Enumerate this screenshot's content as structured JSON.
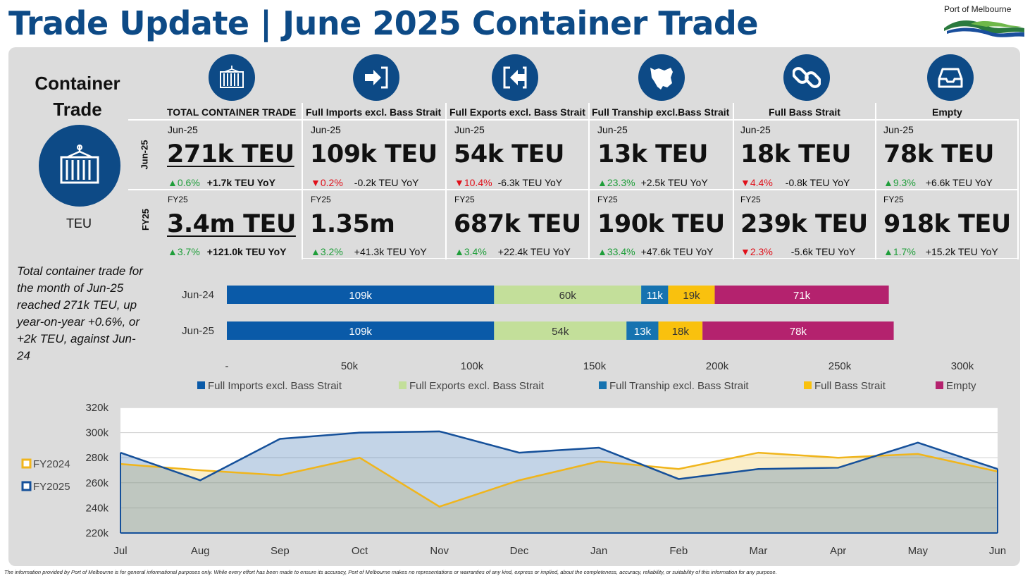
{
  "header": {
    "title": "Trade Update | June 2025 Container Trade",
    "logo_text": "Port of Melbourne"
  },
  "section": {
    "title_line1": "Container",
    "title_line2": "Trade",
    "unit_label": "TEU",
    "row_labels": [
      "Jun-25",
      "FY25"
    ]
  },
  "columns": [
    {
      "heading": "TOTAL CONTAINER TRADE",
      "icon": "container-icon",
      "month": {
        "period": "Jun-25",
        "value": "271k TEU",
        "dir": "up",
        "pct": "0.6%",
        "yoy": "+1.7k TEU YoY"
      },
      "fy": {
        "period": "FY25",
        "value": "3.4m TEU",
        "dir": "up",
        "pct": "3.7%",
        "yoy": "+121.0k TEU YoY"
      }
    },
    {
      "heading": "Full Imports excl. Bass Strait",
      "icon": "import-arrow-icon",
      "month": {
        "period": "Jun-25",
        "value": "109k TEU",
        "dir": "down",
        "pct": "0.2%",
        "yoy": "-0.2k TEU YoY"
      },
      "fy": {
        "period": "FY25",
        "value": "1.35m",
        "dir": "up",
        "pct": "3.2%",
        "yoy": "+41.3k TEU YoY"
      }
    },
    {
      "heading": "Full Exports excl. Bass Strait",
      "icon": "export-arrow-icon",
      "month": {
        "period": "Jun-25",
        "value": "54k TEU",
        "dir": "down",
        "pct": "10.4%",
        "yoy": "-6.3k TEU YoY"
      },
      "fy": {
        "period": "FY25",
        "value": "687k TEU",
        "dir": "up",
        "pct": "3.4%",
        "yoy": "+22.4k TEU YoY"
      }
    },
    {
      "heading": "Full Tranship excl.Bass Strait",
      "icon": "tasmania-map-icon",
      "month": {
        "period": "Jun-25",
        "value": "13k TEU",
        "dir": "up",
        "pct": "23.3%",
        "yoy": "+2.5k TEU YoY"
      },
      "fy": {
        "period": "FY25",
        "value": "190k TEU",
        "dir": "up",
        "pct": "33.4%",
        "yoy": "+47.6k TEU YoY"
      }
    },
    {
      "heading": "Full Bass Strait",
      "icon": "chain-link-icon",
      "month": {
        "period": "Jun-25",
        "value": "18k TEU",
        "dir": "down",
        "pct": "4.4%",
        "yoy": "-0.8k TEU YoY"
      },
      "fy": {
        "period": "FY25",
        "value": "239k TEU",
        "dir": "down",
        "pct": "2.3%",
        "yoy": "-5.6k TEU YoY"
      }
    },
    {
      "heading": "Empty",
      "icon": "empty-tray-icon",
      "month": {
        "period": "Jun-25",
        "value": "78k TEU",
        "dir": "up",
        "pct": "9.3%",
        "yoy": "+6.6k TEU YoY"
      },
      "fy": {
        "period": "FY25",
        "value": "918k TEU",
        "dir": "up",
        "pct": "1.7%",
        "yoy": "+15.2k TEU YoY"
      }
    }
  ],
  "summary": "Total container trade for the month of Jun-25 reached 271k TEU, up year-on-year +0.6%, or +2k TEU, against Jun-24",
  "disclaimer": "The information provided by Port of Melbourne is for general informational purposes only. While every effort has been made to ensure its accuracy, Port of Melbourne makes no representations or warranties of any kind, express or implied, about the completeness, accuracy, reliability, or suitability of this information for any purpose.",
  "chart_data": [
    {
      "type": "bar",
      "orientation": "horizontal",
      "stacked": true,
      "categories": [
        "Jun-24",
        "Jun-25"
      ],
      "series": [
        {
          "name": "Full Imports excl. Bass Strait",
          "color": "#0a5aa8",
          "values": [
            109,
            109
          ],
          "labels": [
            "109k",
            "109k"
          ]
        },
        {
          "name": "Full Exports excl. Bass Strait",
          "color": "#c3df9a",
          "values": [
            60,
            54
          ],
          "labels": [
            "60k",
            "54k"
          ]
        },
        {
          "name": "Full Tranship excl. Bass Strait",
          "color": "#1673b0",
          "values": [
            11,
            13
          ],
          "labels": [
            "11k",
            "13k"
          ]
        },
        {
          "name": "Full Bass Strait",
          "color": "#f9c10e",
          "values": [
            19,
            18
          ],
          "labels": [
            "19k",
            "18k"
          ]
        },
        {
          "name": "Empty",
          "color": "#b4226e",
          "values": [
            71,
            78
          ],
          "labels": [
            "71k",
            "78k"
          ]
        }
      ],
      "xlim": [
        0,
        300
      ],
      "x_ticks": [
        "-",
        "50k",
        "100k",
        "150k",
        "200k",
        "250k",
        "300k"
      ],
      "legend": "bottom"
    },
    {
      "type": "area",
      "categories": [
        "Jul",
        "Aug",
        "Sep",
        "Oct",
        "Nov",
        "Dec",
        "Jan",
        "Feb",
        "Mar",
        "Apr",
        "May",
        "Jun"
      ],
      "series": [
        {
          "name": "FY2024",
          "color": "#f0b51c",
          "values": [
            275,
            270,
            266,
            280,
            241,
            262,
            277,
            271,
            284,
            280,
            283,
            269
          ]
        },
        {
          "name": "FY2025",
          "color": "#15509a",
          "values": [
            284,
            262,
            295,
            300,
            301,
            284,
            288,
            263,
            271,
            272,
            292,
            271
          ]
        }
      ],
      "ylim": [
        220,
        320
      ],
      "y_ticks": [
        "220k",
        "240k",
        "260k",
        "280k",
        "300k",
        "320k"
      ],
      "grid": true,
      "legend": "left"
    }
  ]
}
